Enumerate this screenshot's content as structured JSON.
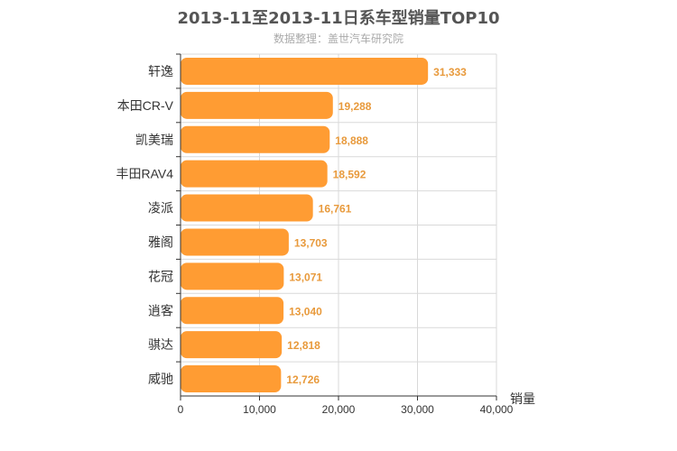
{
  "chart_data": {
    "type": "bar",
    "orientation": "horizontal",
    "title": "2013-11至2013-11日系车型销量TOP10",
    "subtitle": "数据整理：盖世汽车研究院",
    "xlabel": "销量",
    "ylabel": "",
    "xlim": [
      0,
      40000
    ],
    "ticks": [
      0,
      10000,
      20000,
      30000,
      40000
    ],
    "tick_labels": [
      "0",
      "10,000",
      "20,000",
      "30,000",
      "40,000"
    ],
    "grid": true,
    "categories": [
      "轩逸",
      "本田CR-V",
      "凯美瑞",
      "丰田RAV4",
      "凌派",
      "雅阁",
      "花冠",
      "逍客",
      "骐达",
      "威驰"
    ],
    "values": [
      31333,
      19288,
      18888,
      18592,
      16761,
      13703,
      13071,
      13040,
      12818,
      12726
    ],
    "value_labels": [
      "31,333",
      "19,288",
      "18,888",
      "18,592",
      "16,761",
      "13,703",
      "13,071",
      "13,040",
      "12,818",
      "12,726"
    ],
    "colors": {
      "bar": "#FF9C33",
      "value_label": "#E89A3C",
      "grid": "#d9d9d9",
      "axis": "#333333"
    }
  }
}
